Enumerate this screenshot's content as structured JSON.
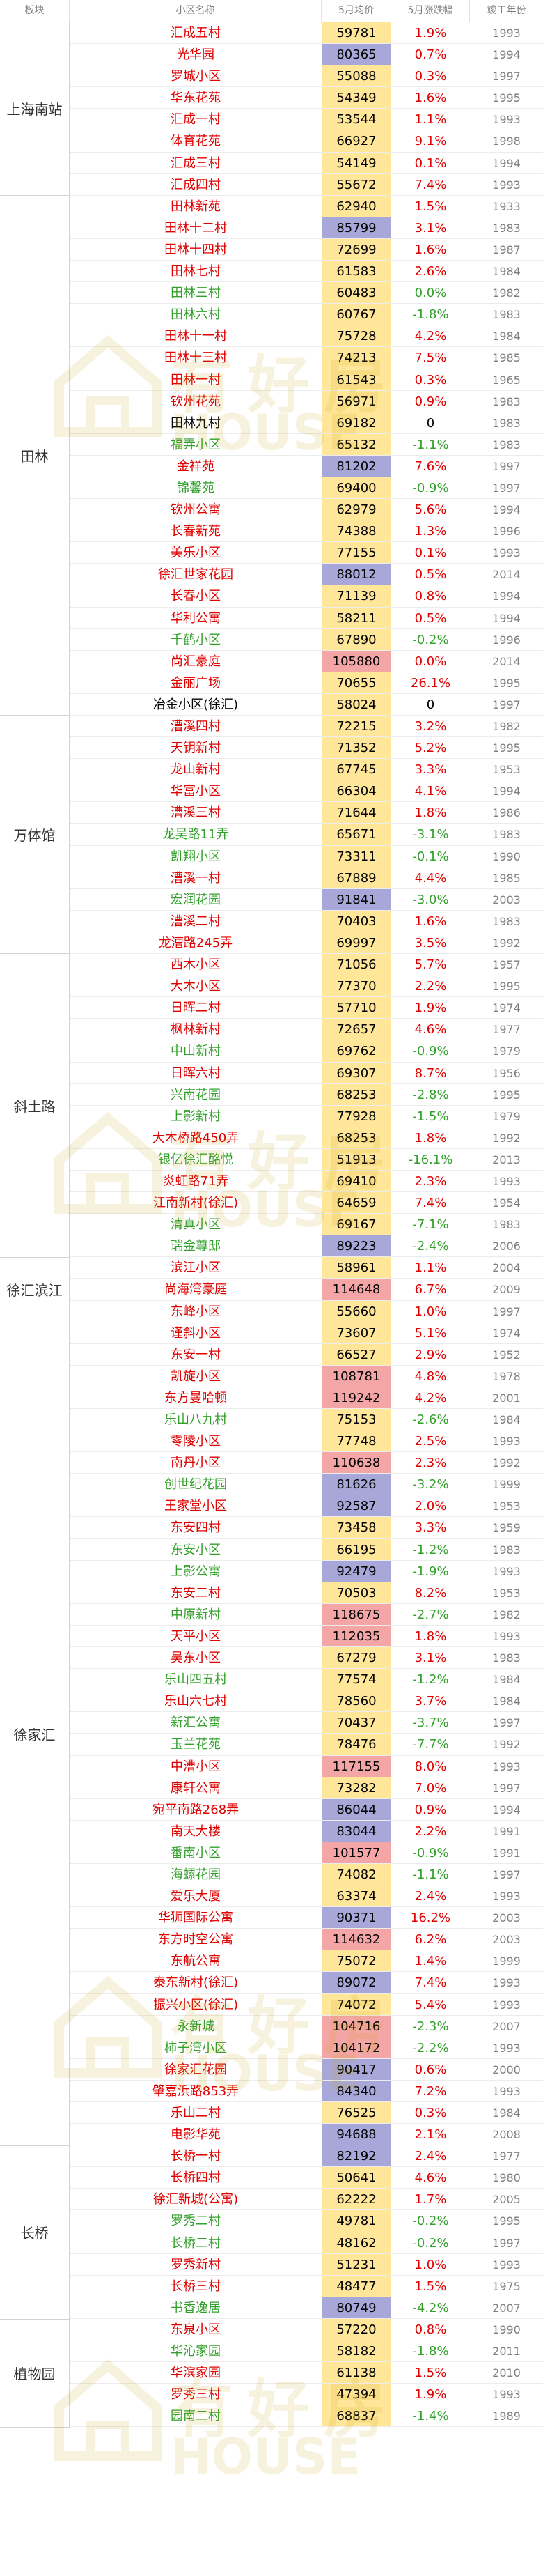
{
  "header": {
    "col_board": "板块",
    "col_name": "小区名称",
    "col_price": "5月均价",
    "col_change": "5月涨跌幅",
    "col_year": "竣工年份"
  },
  "watermark": {
    "big": "有好房",
    "small": "HOUSE"
  },
  "colors": {
    "name_red": "#e00000",
    "name_green": "#33a02c",
    "price_normal": "#ffe699",
    "price_high": "#f4a6a6",
    "price_mid": "#a7a7d9"
  },
  "sections": [
    {
      "name": "上海南站",
      "rows": [
        {
          "n": "汇成五村",
          "p": "59781",
          "c": "1.9%",
          "y": "1993",
          "nc": "red",
          "pc": "n"
        },
        {
          "n": "光华园",
          "p": "80365",
          "c": "0.7%",
          "y": "1994",
          "nc": "red",
          "pc": "b"
        },
        {
          "n": "罗城小区",
          "p": "55088",
          "c": "0.3%",
          "y": "1997",
          "nc": "red",
          "pc": "n"
        },
        {
          "n": "华东花苑",
          "p": "54349",
          "c": "1.6%",
          "y": "1995",
          "nc": "red",
          "pc": "n"
        },
        {
          "n": "汇成一村",
          "p": "53544",
          "c": "1.1%",
          "y": "1993",
          "nc": "red",
          "pc": "n"
        },
        {
          "n": "体育花苑",
          "p": "66927",
          "c": "9.1%",
          "y": "1998",
          "nc": "red",
          "pc": "n"
        },
        {
          "n": "汇成三村",
          "p": "54149",
          "c": "0.1%",
          "y": "1994",
          "nc": "red",
          "pc": "n"
        },
        {
          "n": "汇成四村",
          "p": "55672",
          "c": "7.4%",
          "y": "1993",
          "nc": "red",
          "pc": "n"
        }
      ]
    },
    {
      "name": "田林",
      "rows": [
        {
          "n": "田林新苑",
          "p": "62940",
          "c": "1.5%",
          "y": "1933",
          "nc": "red",
          "pc": "n"
        },
        {
          "n": "田林十二村",
          "p": "85799",
          "c": "3.1%",
          "y": "1983",
          "nc": "red",
          "pc": "b"
        },
        {
          "n": "田林十四村",
          "p": "72699",
          "c": "1.6%",
          "y": "1987",
          "nc": "red",
          "pc": "n"
        },
        {
          "n": "田林七村",
          "p": "61583",
          "c": "2.6%",
          "y": "1984",
          "nc": "red",
          "pc": "n"
        },
        {
          "n": "田林三村",
          "p": "60483",
          "c": "0.0%",
          "y": "1982",
          "nc": "green",
          "pc": "n"
        },
        {
          "n": "田林六村",
          "p": "60767",
          "c": "-1.8%",
          "y": "1983",
          "nc": "green",
          "pc": "n"
        },
        {
          "n": "田林十一村",
          "p": "75728",
          "c": "4.2%",
          "y": "1984",
          "nc": "red",
          "pc": "n"
        },
        {
          "n": "田林十三村",
          "p": "74213",
          "c": "7.5%",
          "y": "1985",
          "nc": "red",
          "pc": "n"
        },
        {
          "n": "田林一村",
          "p": "61543",
          "c": "0.3%",
          "y": "1965",
          "nc": "red",
          "pc": "n"
        },
        {
          "n": "钦州花苑",
          "p": "56971",
          "c": "0.9%",
          "y": "1983",
          "nc": "red",
          "pc": "n"
        },
        {
          "n": "田林九村",
          "p": "69182",
          "c": "0",
          "y": "1983",
          "nc": "black",
          "pc": "n"
        },
        {
          "n": "福弄小区",
          "p": "65132",
          "c": "-1.1%",
          "y": "1983",
          "nc": "green",
          "pc": "n"
        },
        {
          "n": "金祥苑",
          "p": "81202",
          "c": "7.6%",
          "y": "1997",
          "nc": "red",
          "pc": "b"
        },
        {
          "n": "锦馨苑",
          "p": "69400",
          "c": "-0.9%",
          "y": "1997",
          "nc": "green",
          "pc": "n"
        },
        {
          "n": "钦州公寓",
          "p": "62979",
          "c": "5.6%",
          "y": "1994",
          "nc": "red",
          "pc": "n"
        },
        {
          "n": "长春新苑",
          "p": "74388",
          "c": "1.3%",
          "y": "1996",
          "nc": "red",
          "pc": "n"
        },
        {
          "n": "美乐小区",
          "p": "77155",
          "c": "0.1%",
          "y": "1993",
          "nc": "red",
          "pc": "n"
        },
        {
          "n": "徐汇世家花园",
          "p": "88012",
          "c": "0.5%",
          "y": "2014",
          "nc": "red",
          "pc": "b"
        },
        {
          "n": "长春小区",
          "p": "71139",
          "c": "0.8%",
          "y": "1994",
          "nc": "red",
          "pc": "n"
        },
        {
          "n": "华利公寓",
          "p": "58211",
          "c": "0.5%",
          "y": "1994",
          "nc": "red",
          "pc": "n"
        },
        {
          "n": "千鹤小区",
          "p": "67890",
          "c": "-0.2%",
          "y": "1996",
          "nc": "green",
          "pc": "n"
        },
        {
          "n": "尚汇豪庭",
          "p": "105880",
          "c": "0.0%",
          "y": "2014",
          "nc": "red",
          "pc": "r"
        },
        {
          "n": "金丽广场",
          "p": "70655",
          "c": "26.1%",
          "y": "1995",
          "nc": "red",
          "pc": "n"
        },
        {
          "n": "冶金小区(徐汇)",
          "p": "58024",
          "c": "0",
          "y": "1997",
          "nc": "black",
          "pc": "n"
        }
      ]
    },
    {
      "name": "万体馆",
      "rows": [
        {
          "n": "漕溪四村",
          "p": "72215",
          "c": "3.2%",
          "y": "1982",
          "nc": "red",
          "pc": "n"
        },
        {
          "n": "天钥新村",
          "p": "71352",
          "c": "5.2%",
          "y": "1995",
          "nc": "red",
          "pc": "n"
        },
        {
          "n": "龙山新村",
          "p": "67745",
          "c": "3.3%",
          "y": "1953",
          "nc": "red",
          "pc": "n"
        },
        {
          "n": "华富小区",
          "p": "66304",
          "c": "4.1%",
          "y": "1994",
          "nc": "red",
          "pc": "n"
        },
        {
          "n": "漕溪三村",
          "p": "71644",
          "c": "1.8%",
          "y": "1986",
          "nc": "red",
          "pc": "n"
        },
        {
          "n": "龙吴路11弄",
          "p": "65671",
          "c": "-3.1%",
          "y": "1983",
          "nc": "green",
          "pc": "n"
        },
        {
          "n": "凯翔小区",
          "p": "73311",
          "c": "-0.1%",
          "y": "1990",
          "nc": "green",
          "pc": "n"
        },
        {
          "n": "漕溪一村",
          "p": "67889",
          "c": "4.4%",
          "y": "1985",
          "nc": "red",
          "pc": "n"
        },
        {
          "n": "宏润花园",
          "p": "91841",
          "c": "-3.0%",
          "y": "2003",
          "nc": "green",
          "pc": "b"
        },
        {
          "n": "漕溪二村",
          "p": "70403",
          "c": "1.6%",
          "y": "1983",
          "nc": "red",
          "pc": "n"
        },
        {
          "n": "龙漕路245弄",
          "p": "69997",
          "c": "3.5%",
          "y": "1992",
          "nc": "red",
          "pc": "n"
        }
      ]
    },
    {
      "name": "斜土路",
      "rows": [
        {
          "n": "西木小区",
          "p": "71056",
          "c": "5.7%",
          "y": "1957",
          "nc": "red",
          "pc": "n"
        },
        {
          "n": "大木小区",
          "p": "77370",
          "c": "2.2%",
          "y": "1995",
          "nc": "red",
          "pc": "n"
        },
        {
          "n": "日晖二村",
          "p": "57710",
          "c": "1.9%",
          "y": "1974",
          "nc": "red",
          "pc": "n"
        },
        {
          "n": "枫林新村",
          "p": "72657",
          "c": "4.6%",
          "y": "1977",
          "nc": "red",
          "pc": "n"
        },
        {
          "n": "中山新村",
          "p": "69762",
          "c": "-0.9%",
          "y": "1979",
          "nc": "green",
          "pc": "n"
        },
        {
          "n": "日晖六村",
          "p": "69307",
          "c": "8.7%",
          "y": "1956",
          "nc": "red",
          "pc": "n"
        },
        {
          "n": "兴南花园",
          "p": "68253",
          "c": "-2.8%",
          "y": "1995",
          "nc": "green",
          "pc": "n"
        },
        {
          "n": "上影新村",
          "p": "77928",
          "c": "-1.5%",
          "y": "1979",
          "nc": "green",
          "pc": "n"
        },
        {
          "n": "大木桥路450弄",
          "p": "68253",
          "c": "1.8%",
          "y": "1992",
          "nc": "red",
          "pc": "n"
        },
        {
          "n": "银亿徐汇酩悦",
          "p": "51913",
          "c": "-16.1%",
          "y": "2013",
          "nc": "green",
          "pc": "n"
        },
        {
          "n": "炎虹路71弄",
          "p": "69410",
          "c": "2.3%",
          "y": "1993",
          "nc": "red",
          "pc": "n"
        },
        {
          "n": "江南新村(徐汇)",
          "p": "64659",
          "c": "7.4%",
          "y": "1954",
          "nc": "red",
          "pc": "n"
        },
        {
          "n": "清真小区",
          "p": "69167",
          "c": "-7.1%",
          "y": "1983",
          "nc": "green",
          "pc": "n"
        },
        {
          "n": "瑞金尊邸",
          "p": "89223",
          "c": "-2.4%",
          "y": "2006",
          "nc": "green",
          "pc": "b"
        }
      ]
    },
    {
      "name": "徐汇滨江",
      "rows": [
        {
          "n": "滨江小区",
          "p": "58961",
          "c": "1.1%",
          "y": "2004",
          "nc": "red",
          "pc": "n"
        },
        {
          "n": "尚海湾豪庭",
          "p": "114648",
          "c": "6.7%",
          "y": "2009",
          "nc": "red",
          "pc": "r"
        },
        {
          "n": "东峰小区",
          "p": "55660",
          "c": "1.0%",
          "y": "1997",
          "nc": "red",
          "pc": "n"
        }
      ]
    },
    {
      "name": "徐家汇",
      "rows": [
        {
          "n": "谨斜小区",
          "p": "73607",
          "c": "5.1%",
          "y": "1974",
          "nc": "red",
          "pc": "n"
        },
        {
          "n": "东安一村",
          "p": "66527",
          "c": "2.9%",
          "y": "1952",
          "nc": "red",
          "pc": "n"
        },
        {
          "n": "凯旋小区",
          "p": "108781",
          "c": "4.8%",
          "y": "1978",
          "nc": "red",
          "pc": "r"
        },
        {
          "n": "东方曼哈顿",
          "p": "119242",
          "c": "4.2%",
          "y": "2001",
          "nc": "red",
          "pc": "r"
        },
        {
          "n": "乐山八九村",
          "p": "75153",
          "c": "-2.6%",
          "y": "1984",
          "nc": "green",
          "pc": "n"
        },
        {
          "n": "零陵小区",
          "p": "77748",
          "c": "2.5%",
          "y": "1993",
          "nc": "red",
          "pc": "n"
        },
        {
          "n": "南丹小区",
          "p": "110638",
          "c": "2.3%",
          "y": "1992",
          "nc": "red",
          "pc": "r"
        },
        {
          "n": "创世纪花园",
          "p": "81626",
          "c": "-3.2%",
          "y": "1999",
          "nc": "green",
          "pc": "b"
        },
        {
          "n": "王家堂小区",
          "p": "92587",
          "c": "2.0%",
          "y": "1953",
          "nc": "red",
          "pc": "b"
        },
        {
          "n": "东安四村",
          "p": "73458",
          "c": "3.3%",
          "y": "1959",
          "nc": "red",
          "pc": "n"
        },
        {
          "n": "东安小区",
          "p": "66195",
          "c": "-1.2%",
          "y": "1983",
          "nc": "green",
          "pc": "n"
        },
        {
          "n": "上影公寓",
          "p": "92479",
          "c": "-1.9%",
          "y": "1993",
          "nc": "green",
          "pc": "b"
        },
        {
          "n": "东安二村",
          "p": "70503",
          "c": "8.2%",
          "y": "1953",
          "nc": "red",
          "pc": "n"
        },
        {
          "n": "中原新村",
          "p": "118675",
          "c": "-2.7%",
          "y": "1982",
          "nc": "green",
          "pc": "r"
        },
        {
          "n": "天平小区",
          "p": "112035",
          "c": "1.8%",
          "y": "1993",
          "nc": "red",
          "pc": "r"
        },
        {
          "n": "吴东小区",
          "p": "67279",
          "c": "3.1%",
          "y": "1983",
          "nc": "red",
          "pc": "n"
        },
        {
          "n": "乐山四五村",
          "p": "77574",
          "c": "-1.2%",
          "y": "1984",
          "nc": "green",
          "pc": "n"
        },
        {
          "n": "乐山六七村",
          "p": "78560",
          "c": "3.7%",
          "y": "1984",
          "nc": "red",
          "pc": "n"
        },
        {
          "n": "新汇公寓",
          "p": "70437",
          "c": "-3.7%",
          "y": "1997",
          "nc": "green",
          "pc": "n"
        },
        {
          "n": "玉兰花苑",
          "p": "78476",
          "c": "-7.7%",
          "y": "1992",
          "nc": "green",
          "pc": "n"
        },
        {
          "n": "中漕小区",
          "p": "117155",
          "c": "8.0%",
          "y": "1993",
          "nc": "red",
          "pc": "r"
        },
        {
          "n": "康轩公寓",
          "p": "73282",
          "c": "7.0%",
          "y": "1997",
          "nc": "red",
          "pc": "n"
        },
        {
          "n": "宛平南路268弄",
          "p": "86044",
          "c": "0.9%",
          "y": "1994",
          "nc": "red",
          "pc": "b"
        },
        {
          "n": "南天大楼",
          "p": "83044",
          "c": "2.2%",
          "y": "1991",
          "nc": "red",
          "pc": "b"
        },
        {
          "n": "番南小区",
          "p": "101577",
          "c": "-0.9%",
          "y": "1991",
          "nc": "green",
          "pc": "r"
        },
        {
          "n": "海螺花园",
          "p": "74082",
          "c": "-1.1%",
          "y": "1997",
          "nc": "green",
          "pc": "n"
        },
        {
          "n": "爱乐大厦",
          "p": "63374",
          "c": "2.4%",
          "y": "1993",
          "nc": "red",
          "pc": "n"
        },
        {
          "n": "华狮国际公寓",
          "p": "90371",
          "c": "16.2%",
          "y": "2003",
          "nc": "red",
          "pc": "b"
        },
        {
          "n": "东方时空公寓",
          "p": "114632",
          "c": "6.2%",
          "y": "2003",
          "nc": "red",
          "pc": "r"
        },
        {
          "n": "东航公寓",
          "p": "75072",
          "c": "1.4%",
          "y": "1999",
          "nc": "red",
          "pc": "n"
        },
        {
          "n": "泰东新村(徐汇)",
          "p": "89072",
          "c": "7.4%",
          "y": "1993",
          "nc": "red",
          "pc": "b"
        },
        {
          "n": "振兴小区(徐汇)",
          "p": "74072",
          "c": "5.4%",
          "y": "1993",
          "nc": "red",
          "pc": "n"
        },
        {
          "n": "永新城",
          "p": "104716",
          "c": "-2.3%",
          "y": "2007",
          "nc": "green",
          "pc": "r"
        },
        {
          "n": "柿子湾小区",
          "p": "104172",
          "c": "-2.2%",
          "y": "1993",
          "nc": "green",
          "pc": "r"
        },
        {
          "n": "徐家汇花园",
          "p": "90417",
          "c": "0.6%",
          "y": "2000",
          "nc": "red",
          "pc": "b"
        },
        {
          "n": "肇嘉浜路853弄",
          "p": "84340",
          "c": "7.2%",
          "y": "1993",
          "nc": "red",
          "pc": "b"
        },
        {
          "n": "乐山二村",
          "p": "76525",
          "c": "0.3%",
          "y": "1984",
          "nc": "red",
          "pc": "n"
        },
        {
          "n": "电影华苑",
          "p": "94688",
          "c": "2.1%",
          "y": "2008",
          "nc": "red",
          "pc": "b"
        }
      ]
    },
    {
      "name": "长桥",
      "rows": [
        {
          "n": "长桥一村",
          "p": "82192",
          "c": "2.4%",
          "y": "1977",
          "nc": "red",
          "pc": "b"
        },
        {
          "n": "长桥四村",
          "p": "50641",
          "c": "4.6%",
          "y": "1980",
          "nc": "red",
          "pc": "n"
        },
        {
          "n": "徐汇新城(公寓)",
          "p": "62222",
          "c": "1.7%",
          "y": "2005",
          "nc": "red",
          "pc": "n"
        },
        {
          "n": "罗秀二村",
          "p": "49781",
          "c": "-0.2%",
          "y": "1995",
          "nc": "green",
          "pc": "n"
        },
        {
          "n": "长桥二村",
          "p": "48162",
          "c": "-0.2%",
          "y": "1997",
          "nc": "green",
          "pc": "n"
        },
        {
          "n": "罗秀新村",
          "p": "51231",
          "c": "1.0%",
          "y": "1993",
          "nc": "red",
          "pc": "n"
        },
        {
          "n": "长桥三村",
          "p": "48477",
          "c": "1.5%",
          "y": "1975",
          "nc": "red",
          "pc": "n"
        },
        {
          "n": "书香逸居",
          "p": "80749",
          "c": "-4.2%",
          "y": "2007",
          "nc": "green",
          "pc": "b"
        }
      ]
    },
    {
      "name": "植物园",
      "rows": [
        {
          "n": "东泉小区",
          "p": "57220",
          "c": "0.8%",
          "y": "1990",
          "nc": "red",
          "pc": "n"
        },
        {
          "n": "华沁家园",
          "p": "58182",
          "c": "-1.8%",
          "y": "2011",
          "nc": "green",
          "pc": "n"
        },
        {
          "n": "华滨家园",
          "p": "61138",
          "c": "1.5%",
          "y": "2010",
          "nc": "red",
          "pc": "n"
        },
        {
          "n": "罗秀三村",
          "p": "47394",
          "c": "1.9%",
          "y": "1993",
          "nc": "red",
          "pc": "n"
        },
        {
          "n": "园南二村",
          "p": "68837",
          "c": "-1.4%",
          "y": "1989",
          "nc": "green",
          "pc": "n"
        }
      ]
    }
  ]
}
